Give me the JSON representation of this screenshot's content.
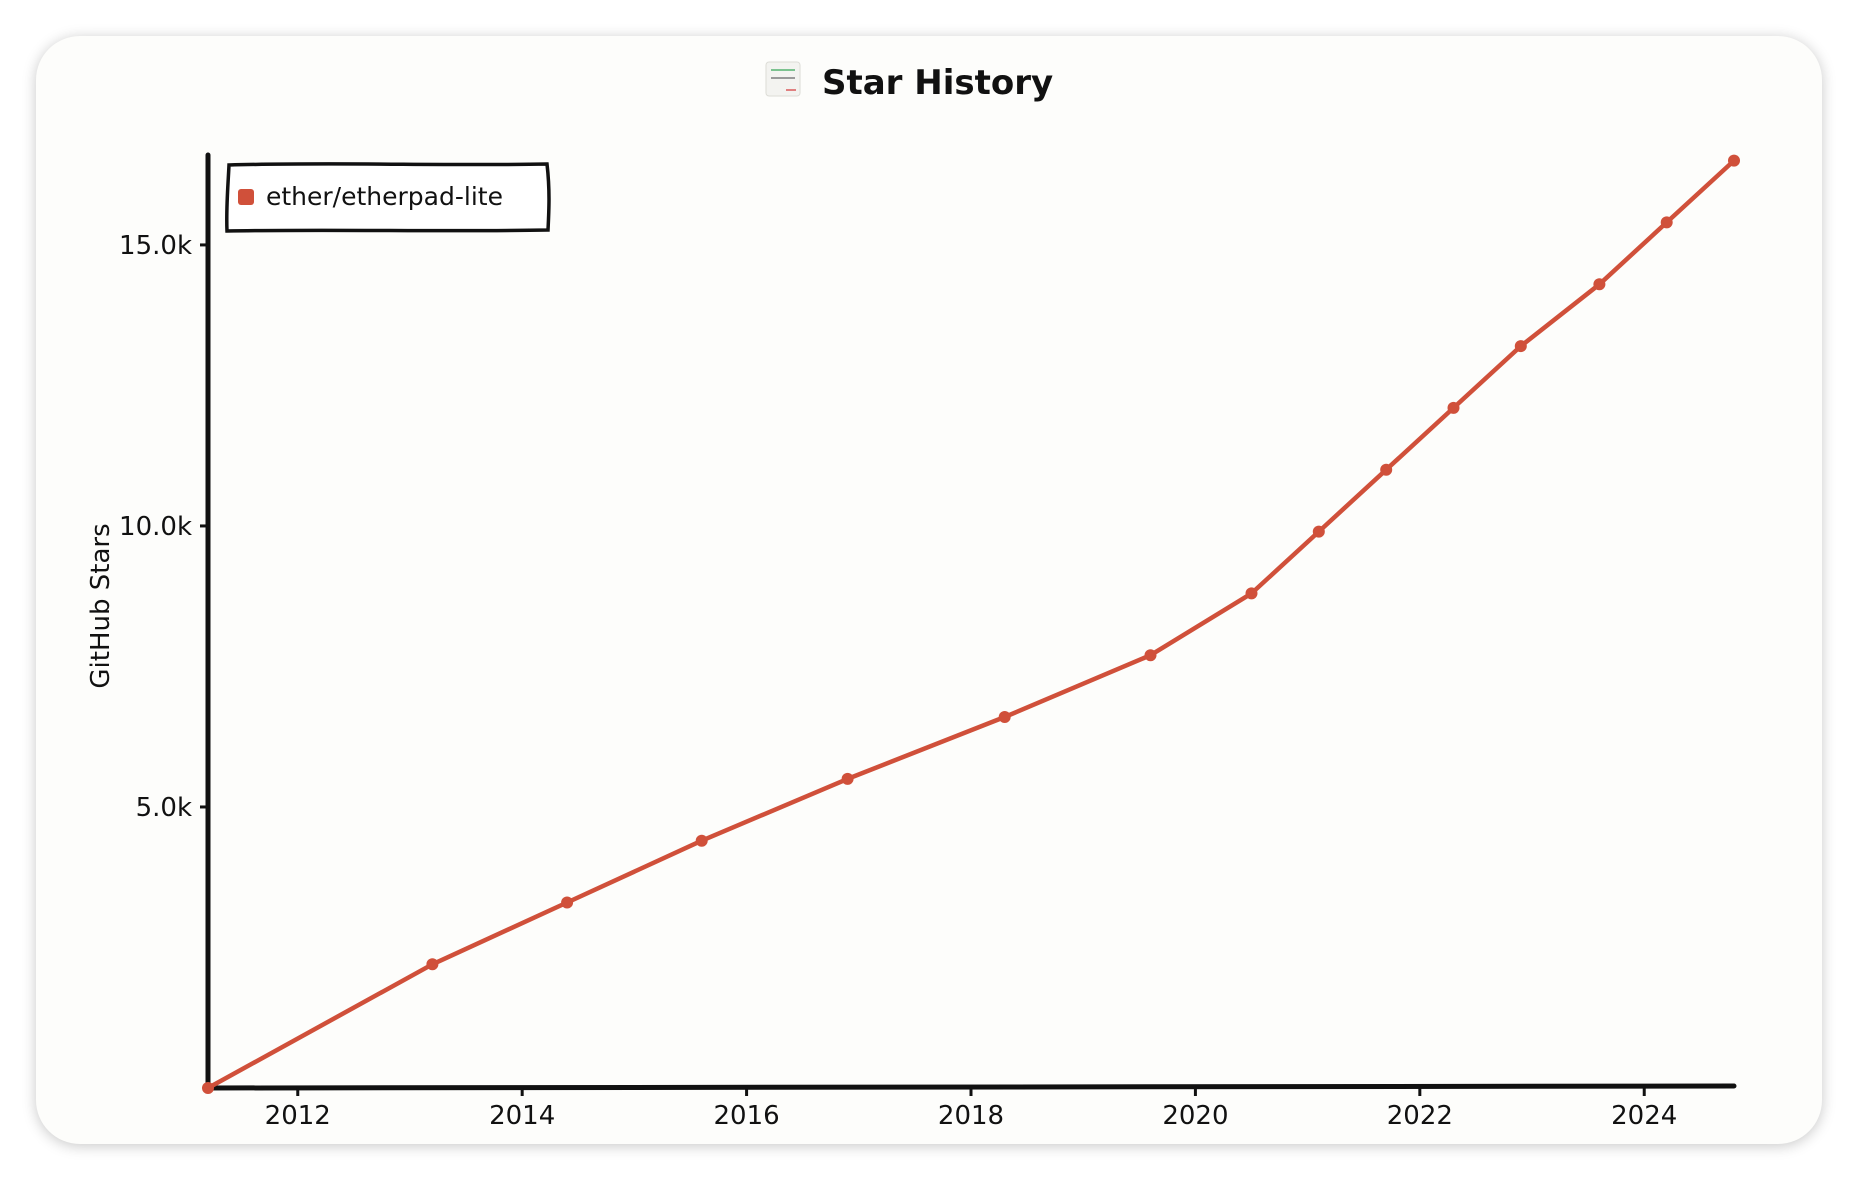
{
  "chart_data": {
    "type": "line",
    "title": "Star History",
    "xlabel": "",
    "ylabel": "GitHub Stars",
    "x_ticks": [
      "2012",
      "2014",
      "2016",
      "2018",
      "2020",
      "2022",
      "2024"
    ],
    "x_tick_years": [
      2012,
      2014,
      2016,
      2018,
      2020,
      2022,
      2024
    ],
    "y_ticks": [
      "5.0k",
      "10.0k",
      "15.0k"
    ],
    "y_tick_values": [
      5000,
      10000,
      15000
    ],
    "xlim": [
      2011.2,
      2024.8
    ],
    "ylim": [
      0,
      16600
    ],
    "grid": false,
    "legend_position": "top-left",
    "series": [
      {
        "name": "ether/etherpad-lite",
        "color": "#d0503a",
        "x": [
          2011.2,
          2013.2,
          2014.4,
          2015.6,
          2016.9,
          2018.3,
          2019.6,
          2020.5,
          2021.1,
          2021.7,
          2022.3,
          2022.9,
          2023.6,
          2024.2,
          2024.8
        ],
        "y": [
          0,
          2200,
          3300,
          4400,
          5500,
          6600,
          7700,
          8800,
          9900,
          11000,
          12100,
          13200,
          14300,
          15400,
          16500
        ]
      }
    ]
  }
}
